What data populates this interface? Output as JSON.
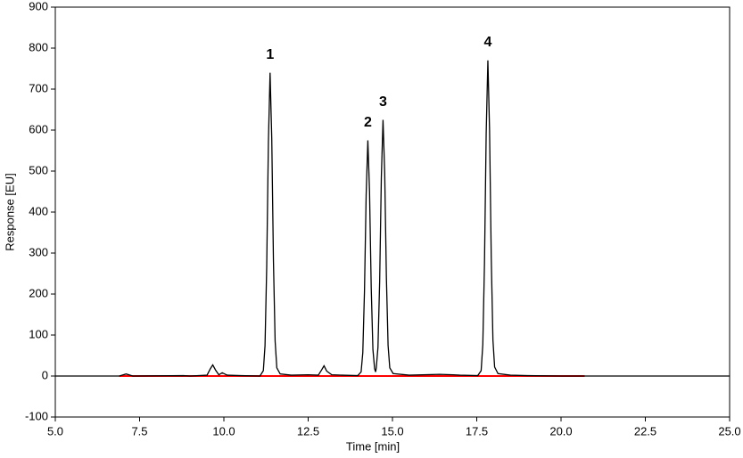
{
  "chart_data": {
    "type": "line",
    "xlabel": "Time [min]",
    "ylabel": "Response [EU]",
    "xlim": [
      5,
      25
    ],
    "xticks": [
      {
        "value": 5,
        "label": "5.0"
      },
      {
        "value": 7.5,
        "label": "7.5"
      },
      {
        "value": 10,
        "label": "10.0"
      },
      {
        "value": 12.5,
        "label": "12.5"
      },
      {
        "value": 15,
        "label": "15.0"
      },
      {
        "value": 17.5,
        "label": "17.5"
      },
      {
        "value": 20,
        "label": "20.0"
      },
      {
        "value": 22.5,
        "label": "22.5"
      },
      {
        "value": 25,
        "label": "25.0"
      }
    ],
    "ylim": [
      -100,
      900
    ],
    "yticks": [
      -100,
      0,
      100,
      200,
      300,
      400,
      500,
      600,
      700,
      800,
      900
    ],
    "series": [
      {
        "color": "#000000",
        "x": [
          5.0,
          6.0,
          6.9,
          7.1,
          7.3,
          8.8,
          9.0,
          9.5,
          9.6,
          9.67,
          9.75,
          9.85,
          9.95,
          10.1,
          10.5,
          11.07,
          11.17,
          11.22,
          11.27,
          11.32,
          11.37,
          11.42,
          11.47,
          11.52,
          11.57,
          11.67,
          12.0,
          12.5,
          12.8,
          12.9,
          12.97,
          13.05,
          13.2,
          13.5,
          13.97,
          14.07,
          14.12,
          14.17,
          14.22,
          14.27,
          14.32,
          14.37,
          14.42,
          14.47,
          14.5,
          14.52,
          14.57,
          14.62,
          14.67,
          14.72,
          14.77,
          14.82,
          14.87,
          14.92,
          15.02,
          15.5,
          16.4,
          16.8,
          17.0,
          17.53,
          17.63,
          17.68,
          17.73,
          17.78,
          17.83,
          17.88,
          17.93,
          17.98,
          18.03,
          18.13,
          18.5,
          19.0,
          20.0,
          22.0,
          25.0
        ],
        "values": [
          0,
          0,
          0,
          5,
          0,
          1,
          0,
          2,
          18,
          27,
          15,
          3,
          8,
          2,
          1,
          0,
          13,
          74,
          266,
          570,
          740,
          580,
          280,
          85,
          20,
          5,
          2,
          3,
          2,
          15,
          25,
          12,
          3,
          2,
          1,
          10,
          57,
          207,
          443,
          575,
          450,
          215,
          65,
          18,
          10,
          20,
          70,
          230,
          485,
          625,
          495,
          240,
          75,
          20,
          6,
          2,
          4,
          3,
          2,
          1,
          13,
          77,
          277,
          593,
          770,
          600,
          290,
          88,
          22,
          6,
          2,
          1,
          0,
          0,
          0
        ]
      },
      {
        "color": "#ff0000",
        "x": [
          6.9,
          20.7
        ],
        "values": [
          0,
          0
        ]
      }
    ],
    "annotations": [
      {
        "text": "1",
        "x": 11.37,
        "y": 770
      },
      {
        "text": "2",
        "x": 14.27,
        "y": 605
      },
      {
        "text": "3",
        "x": 14.72,
        "y": 655
      },
      {
        "text": "4",
        "x": 17.83,
        "y": 800
      }
    ]
  }
}
